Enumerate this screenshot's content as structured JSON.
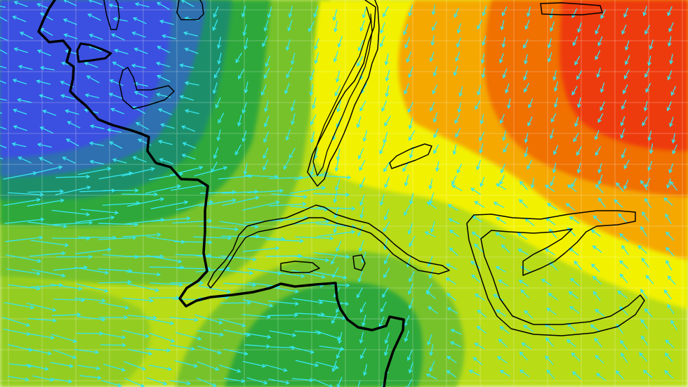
{
  "map": {
    "type": "weather-model-field",
    "field_colors": {
      "blue": "#3a4fe0",
      "steel_blue": "#2e6fb0",
      "teal": "#1f8f6a",
      "green": "#2fa83a",
      "light_green": "#77c22a",
      "yellow_green": "#b8dc14",
      "yellow": "#f2f200",
      "orange": "#f5a800",
      "dark_orange": "#f07000",
      "red": "#ee3a10"
    },
    "wind_arrow_color": "#37e6f0",
    "coastline_color": "#000000",
    "grid_color": "#ffffff",
    "gridlines": true,
    "legend": "none",
    "labels": []
  }
}
